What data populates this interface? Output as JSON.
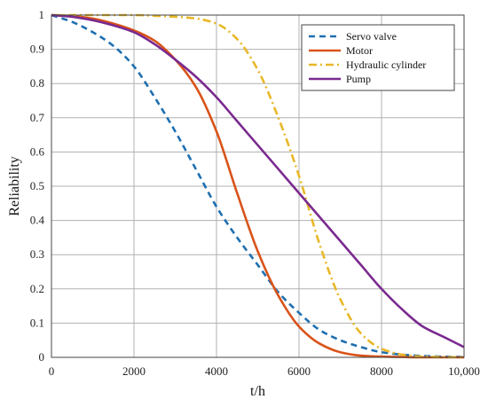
{
  "chart_data": {
    "type": "line",
    "xlabel": "t/h",
    "ylabel": "Reliability",
    "xlim": [
      0,
      10000
    ],
    "ylim": [
      0,
      1
    ],
    "x_ticks": [
      0,
      2000,
      4000,
      6000,
      8000,
      10000
    ],
    "x_tick_labels": [
      "0",
      "2000",
      "4000",
      "6000",
      "8000",
      "10,000"
    ],
    "y_ticks": [
      0,
      0.1,
      0.2,
      0.3,
      0.4,
      0.5,
      0.6,
      0.7,
      0.8,
      0.9,
      1
    ],
    "y_tick_labels": [
      "0",
      "0.1",
      "0.2",
      "0.3",
      "0.4",
      "0.5",
      "0.6",
      "0.7",
      "0.8",
      "0.9",
      "1"
    ],
    "grid": true,
    "legend_position": "top-right",
    "x": [
      0,
      500,
      1000,
      1500,
      2000,
      2500,
      3000,
      3500,
      4000,
      4500,
      5000,
      5500,
      6000,
      6500,
      7000,
      7500,
      8000,
      8500,
      9000,
      9500,
      10000
    ],
    "series": [
      {
        "name": "Servo valve",
        "color": "#1f6fb0",
        "dash": "dashed",
        "values": [
          1.0,
          0.98,
          0.95,
          0.91,
          0.85,
          0.76,
          0.66,
          0.55,
          0.44,
          0.35,
          0.27,
          0.19,
          0.13,
          0.08,
          0.05,
          0.03,
          0.015,
          0.008,
          0.004,
          0.002,
          0.001
        ]
      },
      {
        "name": "Motor",
        "color": "#d95319",
        "dash": "solid",
        "values": [
          1.0,
          0.997,
          0.99,
          0.975,
          0.955,
          0.925,
          0.87,
          0.79,
          0.66,
          0.48,
          0.31,
          0.18,
          0.09,
          0.04,
          0.015,
          0.005,
          0.002,
          0.001,
          0.0,
          0.0,
          0.0
        ]
      },
      {
        "name": "Hydraulic cylinder",
        "color": "#e8b828",
        "dash": "dashdot",
        "values": [
          1.0,
          1.0,
          1.0,
          1.0,
          1.0,
          0.998,
          0.995,
          0.99,
          0.975,
          0.93,
          0.84,
          0.7,
          0.53,
          0.33,
          0.17,
          0.07,
          0.025,
          0.008,
          0.002,
          0.001,
          0.0
        ]
      },
      {
        "name": "Pump",
        "color": "#7a2a8f",
        "dash": "solid",
        "values": [
          1.0,
          0.995,
          0.985,
          0.97,
          0.95,
          0.915,
          0.87,
          0.82,
          0.76,
          0.69,
          0.62,
          0.55,
          0.48,
          0.41,
          0.34,
          0.27,
          0.2,
          0.14,
          0.09,
          0.06,
          0.03
        ]
      }
    ]
  }
}
